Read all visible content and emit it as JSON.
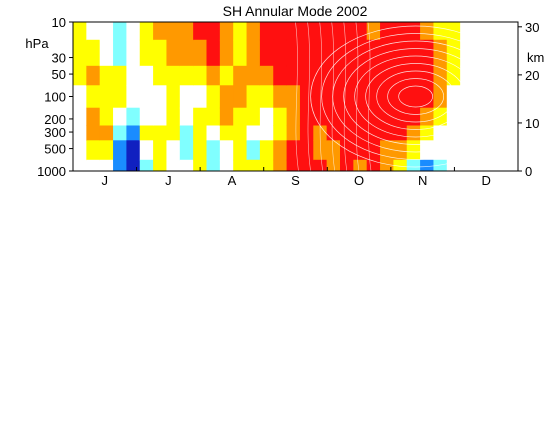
{
  "chart_data": {
    "type": "heatmap",
    "title": "SH Annular Mode 2002",
    "ylabel_left": "hPa",
    "ylabel_right": "km",
    "left_ticks": [
      {
        "label": "10",
        "p": 10
      },
      {
        "label": "30",
        "p": 30
      },
      {
        "label": "50",
        "p": 50
      },
      {
        "label": "100",
        "p": 100
      },
      {
        "label": "200",
        "p": 200
      },
      {
        "label": "300",
        "p": 300
      },
      {
        "label": "500",
        "p": 500
      },
      {
        "label": "1000",
        "p": 1000
      }
    ],
    "right_ticks": [
      {
        "label": "30",
        "km": 30
      },
      {
        "label": "20",
        "km": 20
      },
      {
        "label": "10",
        "km": 10
      },
      {
        "label": "0",
        "km": 0
      }
    ],
    "months": [
      "J",
      "J",
      "A",
      "S",
      "O",
      "N",
      "D"
    ],
    "palette": [
      "#1020c0",
      "#1a8cff",
      "#80ffff",
      "#ffffff",
      "#ffff00",
      "#ff9900",
      "#ff1010"
    ],
    "levels_p": [
      10,
      30,
      50,
      100,
      200,
      300,
      500,
      1000
    ],
    "columns_fraction": [
      0.0,
      0.03,
      0.06,
      0.09,
      0.12,
      0.15,
      0.18,
      0.21,
      0.24,
      0.27,
      0.3,
      0.33,
      0.36,
      0.39,
      0.42,
      0.45,
      0.48,
      0.51,
      0.54,
      0.57,
      0.6,
      0.63,
      0.66,
      0.69,
      0.72,
      0.75,
      0.78,
      0.81,
      0.84,
      0.87
    ],
    "values": [
      [
        1,
        1,
        1,
        0,
        0,
        0,
        0,
        0
      ],
      [
        0,
        1,
        2,
        1,
        2,
        2,
        1,
        0
      ],
      [
        0,
        0,
        1,
        1,
        1,
        2,
        1,
        0
      ],
      [
        -1,
        -1,
        1,
        1,
        0,
        -1,
        -2,
        -2
      ],
      [
        0,
        0,
        0,
        0,
        -1,
        -2,
        -3,
        -3
      ],
      [
        1,
        1,
        0,
        0,
        0,
        1,
        0,
        -1
      ],
      [
        2,
        1,
        1,
        0,
        0,
        1,
        1,
        1
      ],
      [
        2,
        2,
        1,
        1,
        1,
        1,
        0,
        0
      ],
      [
        2,
        2,
        1,
        0,
        0,
        -1,
        -1,
        0
      ],
      [
        3,
        2,
        1,
        0,
        1,
        1,
        1,
        1
      ],
      [
        3,
        3,
        2,
        1,
        1,
        0,
        -1,
        -1
      ],
      [
        2,
        2,
        1,
        2,
        2,
        1,
        0,
        0
      ],
      [
        1,
        1,
        2,
        2,
        1,
        1,
        1,
        1
      ],
      [
        2,
        2,
        2,
        1,
        1,
        0,
        -1,
        1
      ],
      [
        3,
        3,
        2,
        1,
        0,
        0,
        1,
        1
      ],
      [
        3,
        3,
        3,
        2,
        1,
        1,
        2,
        2
      ],
      [
        3,
        3,
        3,
        2,
        2,
        2,
        3,
        3
      ],
      [
        3,
        3,
        3,
        3,
        3,
        3,
        3,
        3
      ],
      [
        3,
        3,
        3,
        3,
        3,
        2,
        2,
        3
      ],
      [
        3,
        3,
        3,
        3,
        3,
        3,
        2,
        2
      ],
      [
        3,
        3,
        3,
        3,
        3,
        3,
        3,
        3
      ],
      [
        3,
        3,
        3,
        3,
        3,
        3,
        3,
        2
      ],
      [
        2,
        3,
        3,
        3,
        3,
        3,
        3,
        3
      ],
      [
        3,
        3,
        3,
        3,
        3,
        3,
        2,
        2
      ],
      [
        3,
        3,
        3,
        3,
        3,
        3,
        2,
        1
      ],
      [
        3,
        3,
        3,
        3,
        3,
        2,
        1,
        -1
      ],
      [
        2,
        3,
        3,
        3,
        2,
        1,
        0,
        -2
      ],
      [
        1,
        2,
        2,
        2,
        1,
        0,
        0,
        -1
      ],
      [
        1,
        1,
        1,
        0,
        0,
        0,
        0,
        0
      ],
      [
        0,
        0,
        0,
        0,
        0,
        0,
        0,
        0
      ]
    ],
    "contour_region": {
      "x_start": 0.5,
      "x_end": 0.88,
      "p_top": 10,
      "p_bottom": 1000,
      "core_x": 0.77,
      "core_p": 100
    },
    "grid": false
  }
}
